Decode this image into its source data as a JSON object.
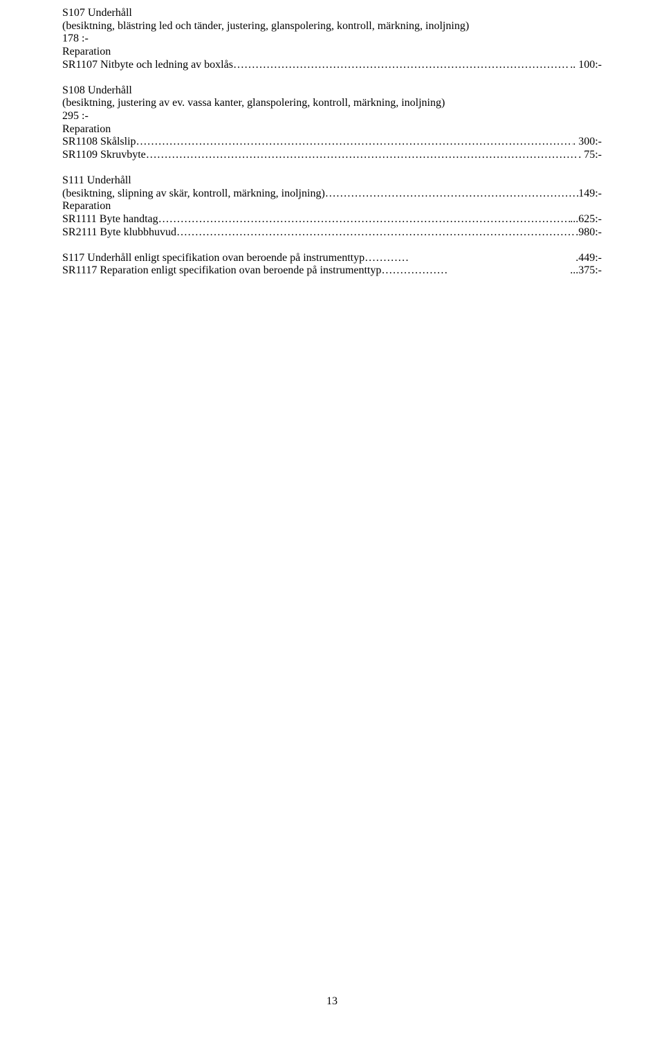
{
  "blocks": [
    {
      "heading": "S107 Underhåll",
      "desc": "(besiktning, blästring led och tänder, justering, glanspolering, kontroll, märkning, inoljning)",
      "cost": "178 :-",
      "reparation": "Reparation",
      "items": [
        {
          "label": "SR1107 Nitbyte och ledning av boxlås",
          "price": ".. 100:-",
          "dots": "ellipsis"
        }
      ]
    },
    {
      "heading": "S108 Underhåll",
      "desc": "(besiktning, justering av ev. vassa kanter, glanspolering, kontroll, märkning, inoljning)",
      "cost": "295 :-",
      "reparation": "Reparation",
      "items": [
        {
          "label": "SR1108 Skålslip",
          "price": ". 300:-",
          "dots": "ellipsis"
        },
        {
          "label": "SR1109 Skruvbyte",
          "price": ". 75:-",
          "dots": "ellipsis"
        }
      ]
    },
    {
      "heading": "S111 Underhåll",
      "desc_inline_label": "(besiktning, slipning av skär, kontroll, märkning, inoljning)",
      "desc_inline_price": "149:-",
      "reparation": "Reparation",
      "items": [
        {
          "label": "SR1111 Byte handtag",
          "price": "...625:-",
          "dots": "ellipsis"
        },
        {
          "label": "SR2111 Byte klubbhuvud",
          "price": ".980:-",
          "dots": "ellipsis"
        }
      ]
    }
  ],
  "tail": [
    {
      "label": "S117 Underhåll enligt specifikation ovan beroende på instrumenttyp",
      "price": ".449:-",
      "dots": "short"
    },
    {
      "label": "SR1117 Reparation enligt specifikation ovan beroende på instrumenttyp",
      "price": "...375:-",
      "dots": "medium"
    }
  ],
  "page_number": "13"
}
